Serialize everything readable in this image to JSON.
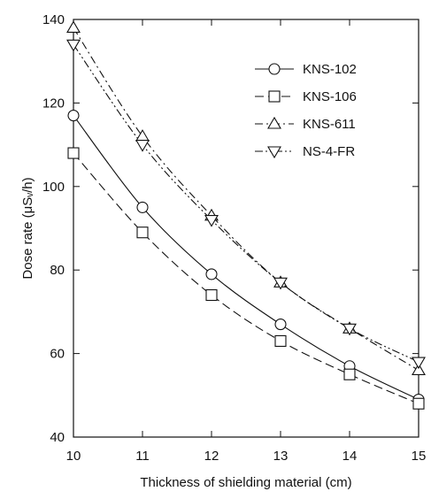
{
  "chart_data": {
    "type": "line",
    "title": "",
    "xlabel": "Thickness of shielding material (cm)",
    "ylabel": "Dose rate (μSᵥ/h)",
    "x": [
      10,
      11,
      12,
      13,
      14,
      15
    ],
    "xlim": [
      10,
      15
    ],
    "ylim": [
      40,
      140
    ],
    "x_ticks": [
      10,
      11,
      12,
      13,
      14,
      15
    ],
    "y_ticks": [
      40,
      60,
      80,
      100,
      120,
      140
    ],
    "grid": false,
    "legend_position": "top-right",
    "series": [
      {
        "name": "KNS-102",
        "marker": "circle",
        "line_style": "solid",
        "values": [
          117,
          95,
          79,
          67,
          57,
          49
        ]
      },
      {
        "name": "KNS-106",
        "marker": "square",
        "line_style": "dash-long",
        "values": [
          108,
          89,
          74,
          63,
          55,
          48
        ]
      },
      {
        "name": "KNS-611",
        "marker": "triangle-up",
        "line_style": "dash-dot",
        "values": [
          138,
          112,
          93,
          77,
          66,
          56
        ]
      },
      {
        "name": "NS-4-FR",
        "marker": "triangle-down",
        "line_style": "dash-dot-dot",
        "values": [
          134,
          110,
          92,
          77,
          66,
          58
        ]
      }
    ]
  }
}
